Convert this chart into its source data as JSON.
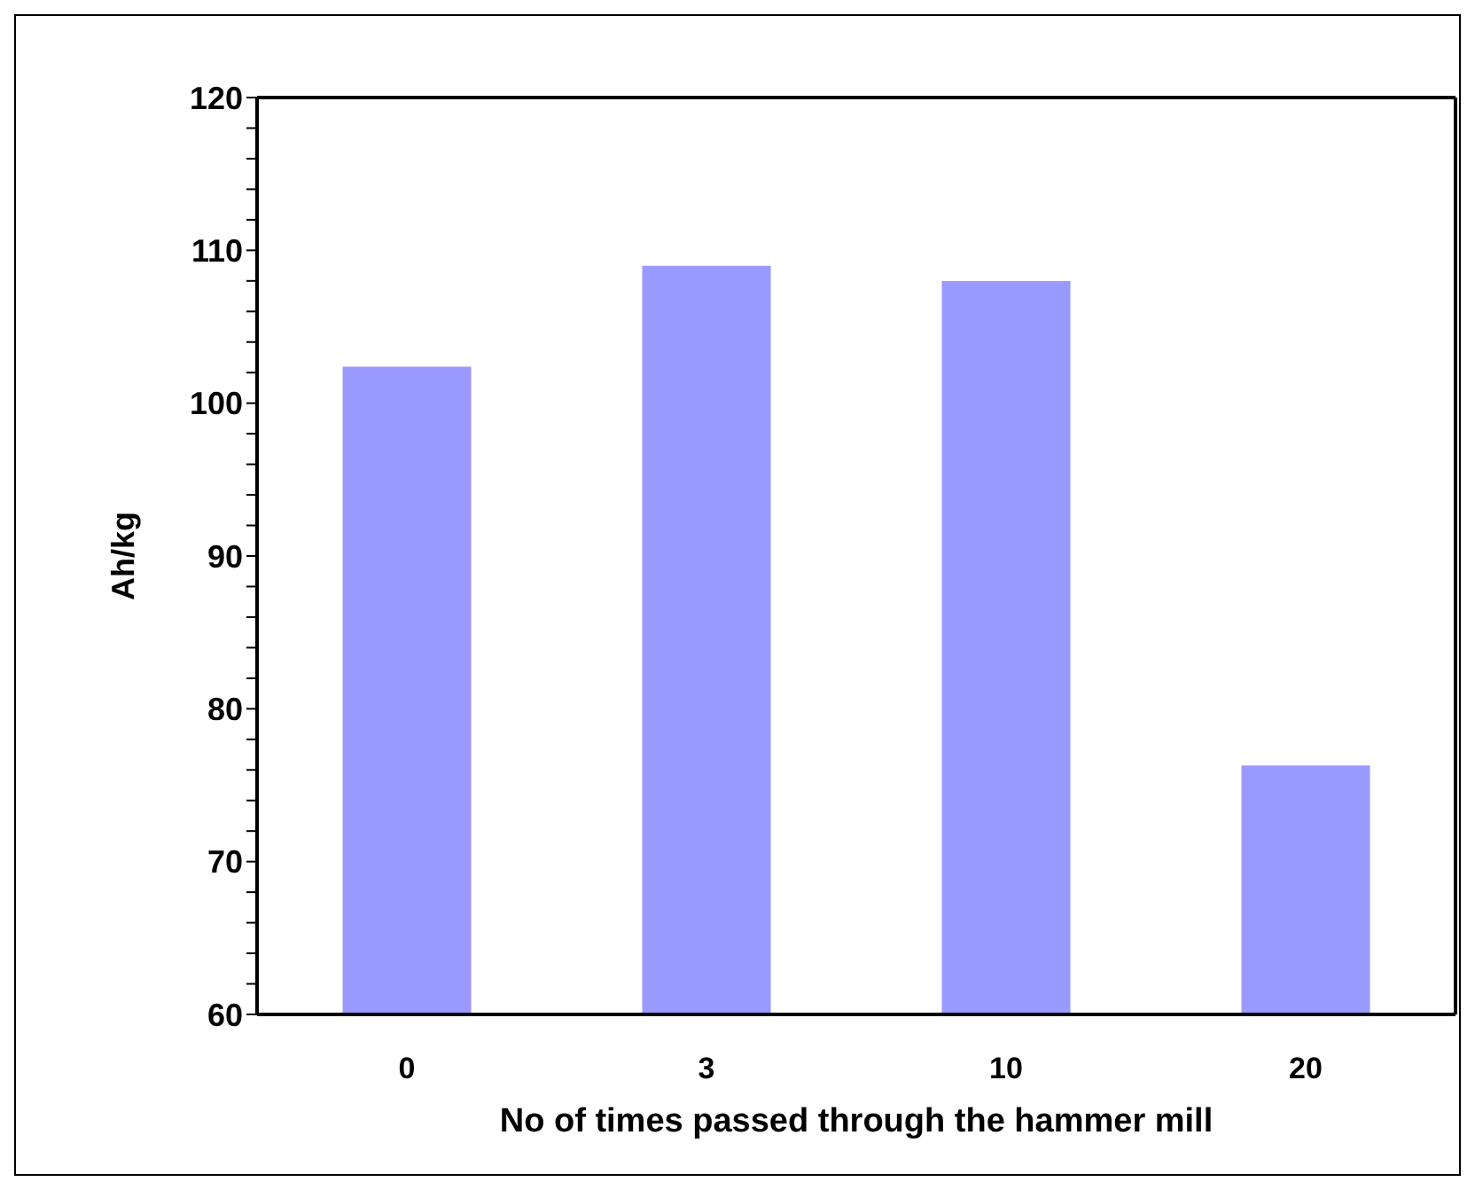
{
  "chart_data": {
    "type": "bar",
    "xlabel": "No of times passed through the hammer mill",
    "ylabel": "Ah/kg",
    "categories": [
      "0",
      "3",
      "10",
      "20"
    ],
    "values": [
      102.3,
      108.9,
      107.9,
      76.2
    ],
    "color": "#9999ff",
    "ylim": [
      60,
      120
    ],
    "yticks": [
      60,
      {
        "value": 62,
        "label": null
      },
      {
        "value": 64,
        "label": null
      },
      {
        "value": 66,
        "label": null
      },
      {
        "value": 68,
        "label": null
      },
      70,
      {
        "value": 72,
        "label": null
      },
      {
        "value": 74,
        "label": null
      },
      {
        "value": 76,
        "label": null
      },
      {
        "value": 78,
        "label": null
      },
      80,
      {
        "value": 82,
        "label": null
      },
      {
        "value": 84,
        "label": null
      },
      {
        "value": 86,
        "label": null
      },
      {
        "value": 88,
        "label": null
      },
      90,
      {
        "value": 92,
        "label": null
      },
      {
        "value": 94,
        "label": null
      },
      {
        "value": 96,
        "label": null
      },
      {
        "value": 98,
        "label": null
      },
      100,
      {
        "value": 102,
        "label": null
      },
      {
        "value": 104,
        "label": null
      },
      {
        "value": 106,
        "label": null
      },
      {
        "value": 108,
        "label": null
      },
      110,
      {
        "value": 112,
        "label": null
      },
      {
        "value": 114,
        "label": null
      },
      {
        "value": 116,
        "label": null
      },
      {
        "value": 118,
        "label": null
      },
      120
    ],
    "grid": false,
    "legend": false
  }
}
